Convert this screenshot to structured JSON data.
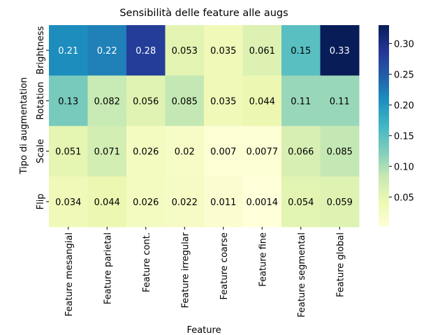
{
  "chart_data": {
    "type": "heatmap",
    "title": "Sensibilità delle feature alle augs",
    "xlabel": "Feature",
    "ylabel": "Tipo di augmentation",
    "xcategories": [
      "Feature mesangial",
      "Feature parietal",
      "Feature cont.",
      "Feature irregular",
      "Feature coarse",
      "Feature fine",
      "Feature segmental",
      "Feature global"
    ],
    "ycategories": [
      "Brightness",
      "Rotation",
      "Scale",
      "Flip"
    ],
    "values": [
      [
        0.21,
        0.22,
        0.28,
        0.053,
        0.035,
        0.061,
        0.15,
        0.33
      ],
      [
        0.13,
        0.082,
        0.056,
        0.085,
        0.035,
        0.044,
        0.11,
        0.11
      ],
      [
        0.051,
        0.071,
        0.026,
        0.02,
        0.007,
        0.0077,
        0.066,
        0.085
      ],
      [
        0.034,
        0.044,
        0.026,
        0.022,
        0.011,
        0.0014,
        0.054,
        0.059
      ]
    ],
    "colormap": [
      "#ffffd9",
      "#edf8b1",
      "#c7e9b4",
      "#7fcdbb",
      "#41b6c4",
      "#1d91c0",
      "#225ea8",
      "#253494",
      "#081d58"
    ],
    "clim": [
      0.0014,
      0.33
    ],
    "cbar_ticks": [
      0.05,
      {
        "value": 0.1,
        "label": "0.10"
      },
      0.15,
      {
        "value": 0.2,
        "label": "0.20"
      },
      0.25,
      {
        "value": 0.3,
        "label": "0.30"
      }
    ]
  }
}
